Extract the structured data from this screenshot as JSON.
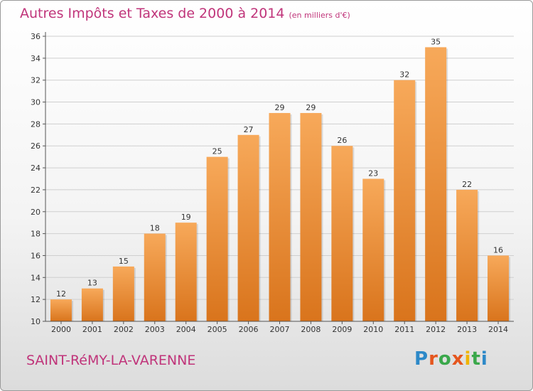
{
  "title": "Autres Impôts et Taxes de 2000 à 2014",
  "unit_note": "(en milliers d'€)",
  "commune": "SAINT-RéMY-LA-VARENNE",
  "logo": {
    "text": "Proxiti",
    "letter_colors": [
      "#2d89c8",
      "#e5561e",
      "#3aa84b",
      "#e5561e",
      "#f0b400",
      "#3aa84b",
      "#2d89c8"
    ]
  },
  "colors": {
    "bar_light": "#f7a95a",
    "bar_dark": "#d9741c",
    "title": "#c0347a",
    "grid": "#cfcfcf"
  },
  "chart_data": {
    "type": "bar",
    "title": "Autres Impôts et Taxes de 2000 à 2014",
    "categories": [
      "2000",
      "2001",
      "2002",
      "2003",
      "2004",
      "2005",
      "2006",
      "2007",
      "2008",
      "2009",
      "2010",
      "2011",
      "2012",
      "2013",
      "2014"
    ],
    "values": [
      12,
      13,
      15,
      18,
      19,
      25,
      27,
      29,
      29,
      26,
      23,
      32,
      35,
      22,
      16
    ],
    "xlabel": "",
    "ylabel": "",
    "ylim": [
      10,
      36
    ],
    "yticks": [
      10,
      12,
      14,
      16,
      18,
      20,
      22,
      24,
      26,
      28,
      30,
      32,
      34,
      36
    ],
    "grid": true,
    "data_labels": true
  }
}
